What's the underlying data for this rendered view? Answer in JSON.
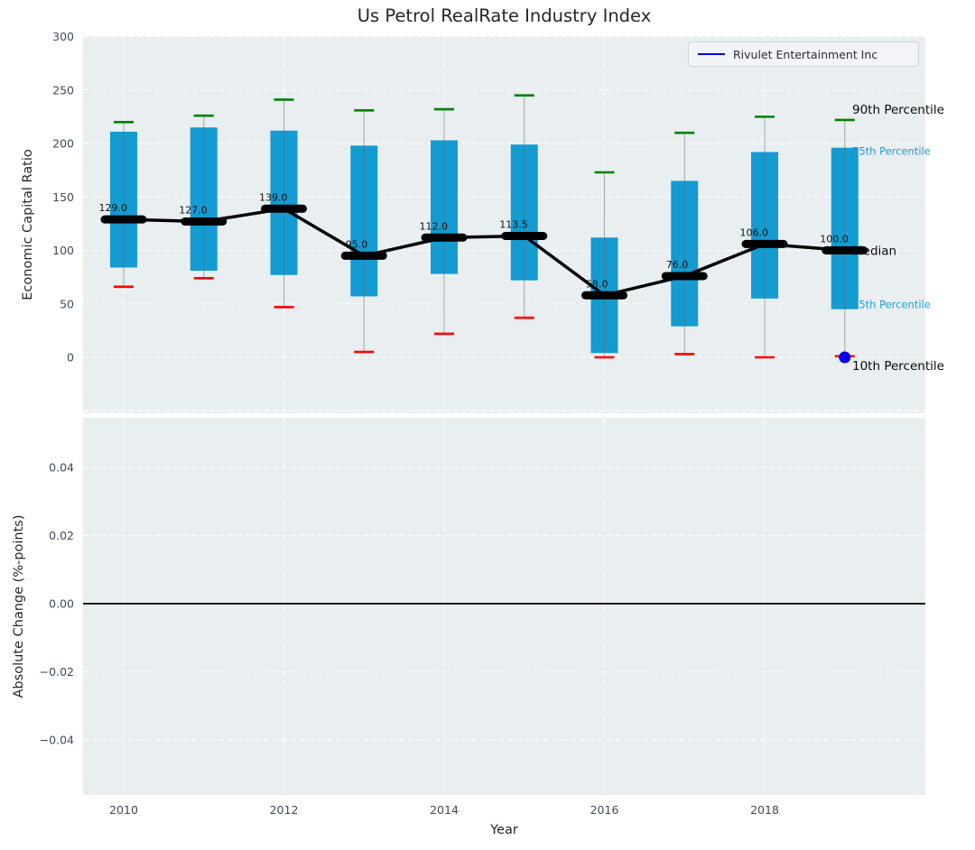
{
  "figure": {
    "title": "Us Petrol RealRate Industry Index",
    "legend": {
      "series_label": "Rivulet Entertainment Inc"
    }
  },
  "colors": {
    "plot_bg": "#e9eef0",
    "grid": "#ffffff",
    "box_fill": "#149bd2",
    "p90_cap": "#008000",
    "p10_cap": "#ff0000",
    "median": "#000000",
    "company": "#0000ee",
    "cyan_label": "#1a9ed6",
    "tick_label": "#3f4b59",
    "whisker": "#666666"
  },
  "chart_data": [
    {
      "type": "boxplot-timeseries",
      "title": "Us Petrol RealRate Industry Index",
      "xlabel": "Year",
      "ylabel": "Economic Capital Ratio",
      "x": [
        2010,
        2011,
        2012,
        2013,
        2014,
        2015,
        2016,
        2017,
        2018,
        2019
      ],
      "series": [
        {
          "name": "90th Percentile",
          "values": [
            220,
            226,
            241,
            231,
            232,
            245,
            173,
            210,
            225,
            222
          ]
        },
        {
          "name": "75th Percentile",
          "values": [
            211,
            215,
            212,
            198,
            203,
            199,
            112,
            165,
            192,
            196
          ]
        },
        {
          "name": "Median",
          "values": [
            129,
            127,
            139,
            95,
            112,
            113.5,
            58,
            76,
            106,
            100
          ]
        },
        {
          "name": "25th Percentile",
          "values": [
            84,
            81,
            77,
            57,
            78,
            72,
            4,
            29,
            55,
            45
          ]
        },
        {
          "name": "10th Percentile",
          "values": [
            66,
            74,
            47,
            5,
            22,
            37,
            0,
            3,
            0,
            1
          ]
        }
      ],
      "median_labels": [
        "129.0",
        "127.0",
        "139.0",
        "95.0",
        "112.0",
        "113.5",
        "58.0",
        "76.0",
        "106.0",
        "100.0"
      ],
      "company_point": {
        "name": "Rivulet Entertainment Inc",
        "x": 2019,
        "y": 0
      },
      "right_labels": [
        {
          "text": "90th Percentile",
          "style": "black"
        },
        {
          "text": "75th Percentile",
          "style": "cyan"
        },
        {
          "text": "Median",
          "style": "black"
        },
        {
          "text": "25th Percentile",
          "style": "cyan"
        },
        {
          "text": "10th Percentile",
          "style": "black"
        }
      ],
      "x_tick_years": [
        2010,
        2012,
        2014,
        2016,
        2018
      ],
      "x_tick_labels": [
        "2010",
        "2012",
        "2014",
        "2016",
        "2018"
      ],
      "y_ticks": [
        0,
        50,
        100,
        150,
        200,
        250,
        300
      ],
      "y_tick_labels": [
        "0",
        "50",
        "100",
        "150",
        "200",
        "250",
        "300"
      ],
      "ylim": [
        -52,
        304
      ],
      "grid": true,
      "legend_position": "upper right"
    },
    {
      "type": "line",
      "xlabel": "Year",
      "ylabel": "Absolute Change (%-points)",
      "y_ticks": [
        0.04,
        0.02,
        0.0,
        -0.02,
        -0.04
      ],
      "y_tick_labels": [
        "0.04",
        "0.02",
        "0.00",
        "−0.02",
        "−0.04"
      ],
      "zero_line_y": 0.0,
      "series": [],
      "grid": true
    }
  ]
}
